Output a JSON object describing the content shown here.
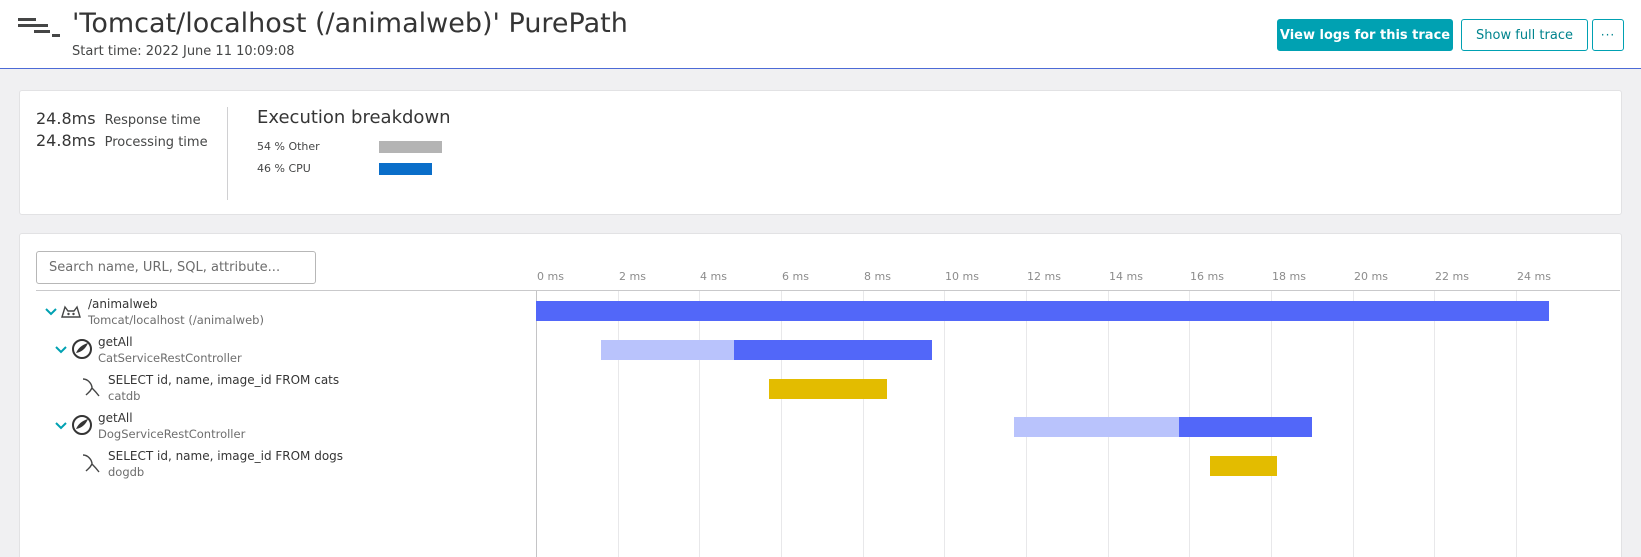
{
  "header": {
    "title": "'Tomcat/localhost (/animalweb)' PurePath",
    "start_time": "Start time: 2022 June 11 10:09:08",
    "buttons": {
      "view_logs": "View logs for this trace",
      "show_full_trace": "Show full trace",
      "more": "···"
    },
    "menu_icon": "purepath-icon"
  },
  "summary": {
    "response_time": {
      "value": "24.8ms",
      "label": "Response time"
    },
    "processing_time": {
      "value": "24.8ms",
      "label": "Processing time"
    },
    "breakdown": {
      "title": "Execution breakdown",
      "items": [
        {
          "label": "54 % Other",
          "percent": 54,
          "color": "#b4b4b4"
        },
        {
          "label": "46 % CPU",
          "percent": 46,
          "color": "#0a6ec9"
        }
      ]
    }
  },
  "trace": {
    "search_placeholder": "Search name, URL, SQL, attribute...",
    "axis": {
      "ticks": [
        "0 ms",
        "2 ms",
        "4 ms",
        "6 ms",
        "8 ms",
        "10 ms",
        "12 ms",
        "14 ms",
        "16 ms",
        "18 ms",
        "20 ms",
        "22 ms",
        "24 ms"
      ],
      "max_ms": 26.55
    },
    "colors": {
      "cpu": "#5267f9",
      "wait": "#b9c3fc",
      "db": "#e3bc00"
    },
    "nodes": [
      {
        "name": "/animalweb",
        "sub": "Tomcat/localhost (/animalweb)",
        "icon": "tomcat-icon",
        "expanded": true,
        "segments": [
          {
            "start": 0,
            "end": 24.8,
            "kind": "cpu"
          }
        ]
      },
      {
        "name": "getAll",
        "sub": "CatServiceRestController",
        "icon": "spring-icon",
        "expanded": true,
        "segments": [
          {
            "start": 1.6,
            "end": 4.85,
            "kind": "wait"
          },
          {
            "start": 4.85,
            "end": 9.7,
            "kind": "cpu"
          }
        ]
      },
      {
        "name": "SELECT id, name, image_id FROM cats",
        "sub": "catdb",
        "icon": "mysql-icon",
        "expanded": null,
        "segments": [
          {
            "start": 5.7,
            "end": 8.6,
            "kind": "db"
          }
        ]
      },
      {
        "name": "getAll",
        "sub": "DogServiceRestController",
        "icon": "spring-icon",
        "expanded": true,
        "segments": [
          {
            "start": 11.7,
            "end": 15.75,
            "kind": "wait"
          },
          {
            "start": 15.75,
            "end": 19.0,
            "kind": "cpu"
          }
        ]
      },
      {
        "name": "SELECT id, name, image_id FROM dogs",
        "sub": "dogdb",
        "icon": "mysql-icon",
        "expanded": null,
        "segments": [
          {
            "start": 16.5,
            "end": 18.15,
            "kind": "db"
          }
        ]
      }
    ]
  }
}
